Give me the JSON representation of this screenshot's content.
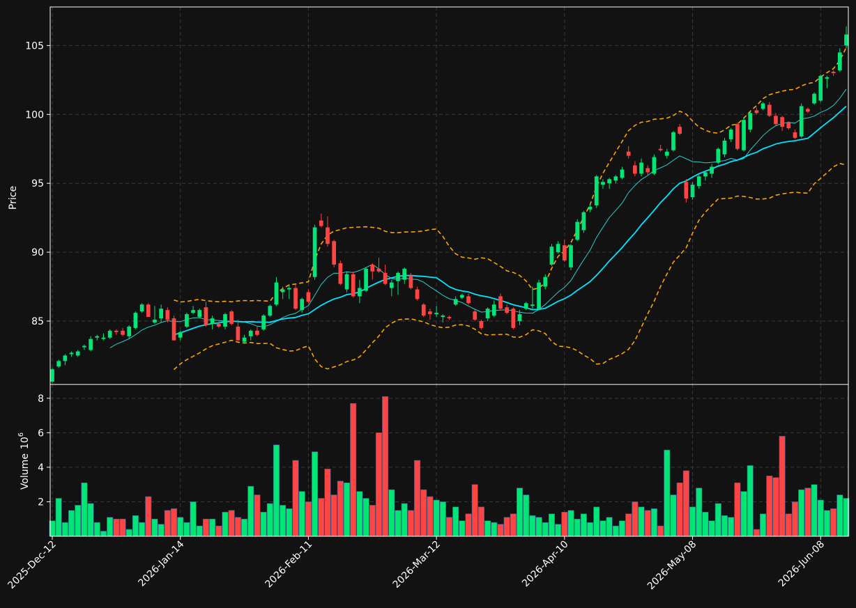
{
  "chart_data": {
    "type": "candlestick",
    "colors": {
      "background": "#121212",
      "frame": "#ffffff",
      "grid": "#3a3a3a",
      "up": "#00e676",
      "down": "#ff4444",
      "ma_fast": "#26d0ce",
      "ma_slow": "#00e5ff",
      "bollinger": "#ffa500"
    },
    "price_panel": {
      "ylabel": "Price",
      "ylim": [
        80.4,
        107.8
      ],
      "yticks": [
        85,
        90,
        95,
        100,
        105
      ]
    },
    "volume_panel": {
      "ylabel": "Volume",
      "ylabel_exponent": "10",
      "ylabel_exponent_power": "6",
      "ylim": [
        0,
        8.8
      ],
      "yticks": [
        2,
        4,
        6,
        8
      ]
    },
    "x_ticks": [
      {
        "label": "2025-Dec-12",
        "index": 0
      },
      {
        "label": "2026-Jan-14",
        "index": 20
      },
      {
        "label": "2026-Feb-11",
        "index": 40
      },
      {
        "label": "2026-Mar-12",
        "index": 60
      },
      {
        "label": "2026-Apr-10",
        "index": 80
      },
      {
        "label": "2026-May-08",
        "index": 100
      },
      {
        "label": "2026-Jun-08",
        "index": 120
      }
    ],
    "n_bars": 125,
    "ohlc": [
      [
        80.6,
        81.6,
        80.5,
        81.5
      ],
      [
        81.7,
        82.2,
        81.6,
        82.1
      ],
      [
        82.1,
        82.6,
        81.8,
        82.5
      ],
      [
        82.6,
        82.8,
        82.4,
        82.7
      ],
      [
        82.5,
        82.9,
        82.4,
        82.8
      ],
      [
        83.1,
        83.3,
        82.9,
        83.2
      ],
      [
        82.9,
        83.9,
        82.8,
        83.7
      ],
      [
        83.8,
        84.0,
        83.6,
        83.9
      ],
      [
        83.7,
        84.1,
        83.6,
        83.8
      ],
      [
        83.8,
        84.4,
        83.7,
        84.3
      ],
      [
        84.3,
        84.4,
        84.0,
        84.2
      ],
      [
        84.3,
        84.5,
        83.9,
        84.0
      ],
      [
        83.9,
        84.7,
        83.7,
        84.6
      ],
      [
        84.5,
        85.7,
        84.4,
        85.6
      ],
      [
        85.7,
        86.3,
        85.6,
        86.2
      ],
      [
        86.2,
        86.3,
        85.3,
        85.3
      ],
      [
        84.9,
        86.1,
        84.8,
        85.1
      ],
      [
        85.2,
        86.2,
        84.9,
        85.9
      ],
      [
        85.8,
        86.0,
        84.9,
        85.1
      ],
      [
        85.2,
        85.4,
        83.6,
        83.6
      ],
      [
        83.8,
        84.3,
        83.6,
        84.2
      ],
      [
        84.6,
        85.6,
        84.5,
        85.5
      ],
      [
        85.6,
        86.1,
        85.5,
        85.8
      ],
      [
        85.3,
        85.9,
        85.2,
        85.8
      ],
      [
        86.0,
        86.4,
        84.6,
        84.7
      ],
      [
        84.8,
        85.4,
        84.4,
        85.2
      ],
      [
        84.8,
        85.0,
        84.5,
        84.6
      ],
      [
        84.6,
        85.6,
        84.4,
        85.5
      ],
      [
        85.7,
        85.8,
        84.7,
        84.8
      ],
      [
        84.6,
        85.1,
        83.6,
        83.6
      ],
      [
        83.5,
        84.0,
        83.4,
        83.8
      ],
      [
        83.9,
        84.4,
        83.6,
        84.3
      ],
      [
        84.3,
        84.6,
        83.9,
        84.0
      ],
      [
        84.4,
        85.5,
        84.3,
        85.4
      ],
      [
        85.4,
        86.2,
        85.3,
        86.1
      ],
      [
        86.2,
        88.2,
        86.1,
        87.8
      ],
      [
        87.1,
        87.5,
        86.6,
        87.3
      ],
      [
        87.3,
        87.6,
        86.6,
        87.4
      ],
      [
        87.4,
        87.6,
        85.8,
        85.9
      ],
      [
        85.8,
        86.7,
        85.6,
        86.6
      ],
      [
        87.1,
        87.3,
        86.3,
        86.4
      ],
      [
        88.2,
        92.0,
        88.0,
        91.8
      ],
      [
        92.3,
        92.8,
        91.8,
        91.9
      ],
      [
        91.8,
        92.6,
        90.4,
        90.6
      ],
      [
        90.8,
        90.9,
        88.9,
        89.1
      ],
      [
        89.2,
        89.4,
        87.6,
        87.7
      ],
      [
        87.3,
        88.6,
        87.1,
        88.4
      ],
      [
        88.4,
        88.6,
        86.7,
        86.8
      ],
      [
        86.8,
        88.0,
        86.3,
        87.4
      ],
      [
        87.2,
        88.9,
        87.1,
        88.8
      ],
      [
        89.1,
        89.2,
        88.0,
        88.6
      ],
      [
        88.8,
        89.6,
        88.5,
        88.6
      ],
      [
        88.5,
        89.1,
        87.6,
        87.7
      ],
      [
        87.4,
        88.0,
        86.8,
        87.8
      ],
      [
        87.9,
        88.6,
        86.9,
        88.5
      ],
      [
        88.0,
        88.9,
        87.7,
        88.8
      ],
      [
        88.3,
        88.5,
        87.3,
        87.4
      ],
      [
        87.3,
        87.5,
        86.5,
        86.6
      ],
      [
        86.2,
        86.3,
        85.3,
        85.4
      ],
      [
        85.7,
        85.9,
        85.1,
        85.5
      ],
      [
        85.5,
        86.1,
        85.3,
        85.6
      ],
      [
        85.3,
        85.5,
        84.9,
        85.4
      ],
      [
        85.3,
        85.4,
        85.1,
        85.2
      ],
      [
        86.2,
        86.8,
        86.1,
        86.6
      ],
      [
        86.7,
        87.0,
        86.6,
        86.9
      ],
      [
        86.8,
        87.0,
        86.2,
        86.3
      ],
      [
        85.7,
        85.9,
        85.0,
        85.1
      ],
      [
        85.0,
        85.1,
        84.4,
        84.5
      ],
      [
        85.2,
        86.0,
        85.0,
        85.9
      ],
      [
        85.4,
        86.5,
        85.3,
        86.2
      ],
      [
        86.8,
        87.0,
        85.8,
        85.9
      ],
      [
        86.0,
        86.2,
        85.5,
        85.6
      ],
      [
        85.9,
        86.0,
        84.4,
        84.5
      ],
      [
        85.0,
        85.8,
        84.7,
        85.5
      ],
      [
        85.9,
        86.4,
        85.8,
        86.3
      ],
      [
        86.1,
        87.5,
        85.9,
        86.2
      ],
      [
        85.9,
        88.0,
        85.8,
        87.8
      ],
      [
        87.5,
        88.4,
        87.3,
        88.2
      ],
      [
        89.1,
        90.6,
        89.0,
        90.4
      ],
      [
        90.0,
        90.8,
        89.9,
        90.6
      ],
      [
        90.5,
        90.9,
        89.3,
        89.4
      ],
      [
        88.9,
        90.6,
        88.7,
        90.5
      ],
      [
        90.9,
        92.4,
        90.8,
        92.2
      ],
      [
        91.6,
        93.0,
        91.4,
        92.9
      ],
      [
        93.1,
        93.5,
        92.9,
        93.3
      ],
      [
        93.4,
        95.6,
        93.2,
        95.5
      ],
      [
        94.9,
        95.3,
        94.6,
        95.1
      ],
      [
        95.0,
        95.4,
        94.6,
        95.3
      ],
      [
        95.2,
        95.6,
        95.0,
        95.5
      ],
      [
        95.4,
        96.2,
        95.3,
        96.0
      ],
      [
        97.3,
        97.7,
        96.8,
        97.0
      ],
      [
        96.3,
        96.6,
        95.5,
        95.7
      ],
      [
        95.7,
        96.8,
        95.5,
        96.5
      ],
      [
        96.1,
        96.3,
        95.6,
        95.8
      ],
      [
        95.7,
        97.1,
        95.6,
        96.9
      ],
      [
        97.5,
        97.8,
        97.3,
        97.4
      ],
      [
        97.0,
        97.5,
        96.8,
        97.3
      ],
      [
        97.4,
        98.8,
        97.3,
        98.7
      ],
      [
        99.1,
        99.3,
        98.5,
        98.6
      ],
      [
        95.1,
        95.3,
        93.6,
        93.9
      ],
      [
        94.0,
        95.1,
        93.8,
        94.9
      ],
      [
        94.8,
        95.6,
        94.6,
        95.5
      ],
      [
        95.5,
        95.9,
        95.2,
        95.8
      ],
      [
        95.7,
        96.4,
        95.4,
        96.2
      ],
      [
        96.5,
        97.6,
        96.4,
        97.5
      ],
      [
        97.1,
        98.3,
        96.9,
        98.1
      ],
      [
        98.2,
        99.0,
        98.0,
        98.9
      ],
      [
        99.3,
        99.4,
        97.4,
        97.5
      ],
      [
        97.4,
        99.8,
        97.3,
        99.6
      ],
      [
        98.9,
        100.2,
        98.7,
        100.1
      ],
      [
        100.3,
        100.5,
        100.0,
        100.1
      ],
      [
        100.4,
        100.9,
        100.3,
        100.8
      ],
      [
        100.7,
        100.9,
        99.8,
        99.9
      ],
      [
        99.9,
        100.1,
        99.2,
        99.3
      ],
      [
        99.8,
        99.9,
        98.8,
        99.1
      ],
      [
        99.4,
        99.5,
        98.9,
        99.0
      ],
      [
        98.7,
        98.9,
        98.2,
        98.3
      ],
      [
        98.4,
        100.8,
        98.3,
        100.6
      ],
      [
        100.4,
        100.5,
        100.1,
        100.2
      ],
      [
        100.8,
        101.6,
        100.7,
        101.5
      ],
      [
        101.0,
        102.9,
        100.9,
        102.8
      ],
      [
        102.6,
        102.8,
        101.9,
        102.7
      ],
      [
        103.1,
        103.2,
        102.8,
        103.0
      ],
      [
        103.2,
        104.8,
        103.1,
        104.5
      ],
      [
        105.0,
        106.4,
        104.8,
        105.8
      ]
    ],
    "volume_millions": [
      0.9,
      2.2,
      0.8,
      1.5,
      1.8,
      3.1,
      1.9,
      0.8,
      0.3,
      1.1,
      1.0,
      1.0,
      0.4,
      1.2,
      0.8,
      2.3,
      1.0,
      0.7,
      1.5,
      1.6,
      1.1,
      0.8,
      2.0,
      0.6,
      1.0,
      1.0,
      0.6,
      1.4,
      1.5,
      1.1,
      1.0,
      2.9,
      2.4,
      1.4,
      1.9,
      5.3,
      1.8,
      1.6,
      4.4,
      2.6,
      2.0,
      4.9,
      2.2,
      3.9,
      2.4,
      3.2,
      3.1,
      7.7,
      2.6,
      2.2,
      1.8,
      6.0,
      8.1,
      2.7,
      1.5,
      1.9,
      1.5,
      4.4,
      2.7,
      2.3,
      2.1,
      2.0,
      1.1,
      1.7,
      0.9,
      1.3,
      3.0,
      1.7,
      0.9,
      0.8,
      0.7,
      1.1,
      1.3,
      2.8,
      2.4,
      1.2,
      1.1,
      0.8,
      1.3,
      0.7,
      1.4,
      1.5,
      1.0,
      1.3,
      0.8,
      1.7,
      0.9,
      1.1,
      0.6,
      0.9,
      1.3,
      2.0,
      1.7,
      1.5,
      1.6,
      0.6,
      5.0,
      2.4,
      3.1,
      3.8,
      1.7,
      2.8,
      1.4,
      0.9,
      1.9,
      1.2,
      1.1,
      3.1,
      2.6,
      4.1,
      0.4,
      1.3,
      3.5,
      3.4,
      5.8,
      1.3,
      2.0,
      2.7,
      2.8,
      3.0,
      2.1,
      1.5,
      1.6,
      2.4,
      2.2
    ]
  }
}
